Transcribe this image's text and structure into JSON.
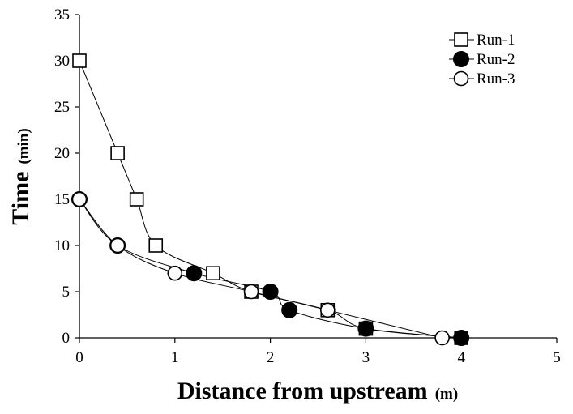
{
  "chart_data": {
    "type": "scatter",
    "xlabel": "Distance from upstream",
    "xunit": "(m)",
    "ylabel": "Time",
    "yunit": "(min)",
    "xlim": [
      0,
      5
    ],
    "ylim": [
      0,
      35
    ],
    "xticks": [
      "0",
      "1",
      "2",
      "3",
      "4",
      "5"
    ],
    "yticks": [
      "0",
      "5",
      "10",
      "15",
      "20",
      "25",
      "30",
      "35"
    ],
    "grid": false,
    "legend_position": "top-right",
    "series": [
      {
        "name": "Run-1",
        "marker": "open-square",
        "color": "#000000",
        "x": [
          0.0,
          0.4,
          0.6,
          0.8,
          1.4,
          1.8,
          2.6,
          3.0,
          4.0
        ],
        "y": [
          30,
          20,
          15,
          10,
          7,
          5,
          3,
          1,
          0
        ]
      },
      {
        "name": "Run-2",
        "marker": "filled-circle",
        "color": "#000000",
        "x": [
          0.0,
          0.4,
          1.2,
          2.0,
          2.2,
          3.0,
          4.0
        ],
        "y": [
          15,
          10,
          7,
          5,
          3,
          1,
          0
        ]
      },
      {
        "name": "Run-3",
        "marker": "open-circle",
        "color": "#000000",
        "x": [
          0.0,
          0.4,
          1.0,
          1.8,
          2.6,
          3.8
        ],
        "y": [
          15,
          10,
          7,
          5,
          3,
          0
        ]
      }
    ]
  }
}
